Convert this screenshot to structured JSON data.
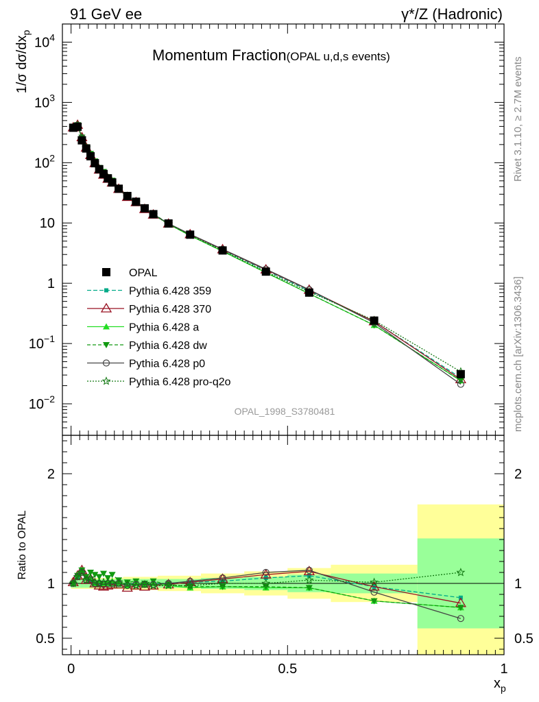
{
  "header": {
    "left": "91 GeV ee",
    "right": "γ*/Z (Hadronic)"
  },
  "side_labels": {
    "rivet": "Rivet 3.1.10, ≥ 2.7M events",
    "mcplots": "mcplots.cern.ch [arXiv:1306.3436]"
  },
  "chart_data": {
    "type": "line",
    "title": "Momentum Fraction",
    "subtitle": "(OPAL u,d,s events)",
    "analysis_id": "OPAL_1998_S3780481",
    "xlabel": "x",
    "xlabel_sub": "p",
    "ylabel_main": "1/σ dσ/dx",
    "ylabel_main_sub": "p",
    "ylabel_ratio": "Ratio to OPAL",
    "xlim": [
      -0.02,
      1.0
    ],
    "x_ticks": [
      "0",
      "0.5",
      "1"
    ],
    "x_tick_values": [
      0,
      0.5,
      1
    ],
    "main": {
      "yscale": "log",
      "ylim": [
        0.003,
        20000
      ],
      "y_ticks": [
        {
          "value": 0.01,
          "base": "10",
          "exp": "−2"
        },
        {
          "value": 0.1,
          "base": "10",
          "exp": "−1"
        },
        {
          "value": 1,
          "base": "1",
          "exp": ""
        },
        {
          "value": 10,
          "base": "10",
          "exp": ""
        },
        {
          "value": 100,
          "base": "10",
          "exp": "2"
        },
        {
          "value": 1000,
          "base": "10",
          "exp": "3"
        },
        {
          "value": 10000,
          "base": "10",
          "exp": "4"
        }
      ]
    },
    "ratio": {
      "ylim": [
        0.35,
        2.35
      ],
      "y_ticks": [
        "0.5",
        "1",
        "2"
      ],
      "y_tick_values": [
        0.5,
        1,
        2
      ],
      "bands": [
        {
          "x0": 0.0,
          "x1": 0.01,
          "inner": 0.04,
          "outer": 0.05
        },
        {
          "x0": 0.01,
          "x1": 0.02,
          "inner": 0.04,
          "outer": 0.05
        },
        {
          "x0": 0.02,
          "x1": 0.03,
          "inner": 0.04,
          "outer": 0.05
        },
        {
          "x0": 0.03,
          "x1": 0.04,
          "inner": 0.04,
          "outer": 0.05
        },
        {
          "x0": 0.04,
          "x1": 0.05,
          "inner": 0.04,
          "outer": 0.05
        },
        {
          "x0": 0.05,
          "x1": 0.06,
          "inner": 0.04,
          "outer": 0.05
        },
        {
          "x0": 0.06,
          "x1": 0.07,
          "inner": 0.04,
          "outer": 0.05
        },
        {
          "x0": 0.07,
          "x1": 0.08,
          "inner": 0.04,
          "outer": 0.05
        },
        {
          "x0": 0.08,
          "x1": 0.09,
          "inner": 0.04,
          "outer": 0.05
        },
        {
          "x0": 0.09,
          "x1": 0.1,
          "inner": 0.04,
          "outer": 0.05
        },
        {
          "x0": 0.1,
          "x1": 0.12,
          "inner": 0.04,
          "outer": 0.05
        },
        {
          "x0": 0.12,
          "x1": 0.14,
          "inner": 0.04,
          "outer": 0.06
        },
        {
          "x0": 0.14,
          "x1": 0.16,
          "inner": 0.04,
          "outer": 0.06
        },
        {
          "x0": 0.16,
          "x1": 0.18,
          "inner": 0.04,
          "outer": 0.06
        },
        {
          "x0": 0.18,
          "x1": 0.2,
          "inner": 0.04,
          "outer": 0.06
        },
        {
          "x0": 0.2,
          "x1": 0.25,
          "inner": 0.04,
          "outer": 0.07
        },
        {
          "x0": 0.25,
          "x1": 0.3,
          "inner": 0.04,
          "outer": 0.07
        },
        {
          "x0": 0.3,
          "x1": 0.4,
          "inner": 0.05,
          "outer": 0.09
        },
        {
          "x0": 0.4,
          "x1": 0.5,
          "inner": 0.06,
          "outer": 0.11
        },
        {
          "x0": 0.5,
          "x1": 0.6,
          "inner": 0.08,
          "outer": 0.14
        },
        {
          "x0": 0.6,
          "x1": 0.8,
          "inner": 0.09,
          "outer": 0.17
        },
        {
          "x0": 0.8,
          "x1": 1.0,
          "inner": 0.41,
          "outer": 0.72
        }
      ]
    },
    "data": {
      "name": "OPAL",
      "x": [
        0.005,
        0.015,
        0.025,
        0.035,
        0.045,
        0.055,
        0.065,
        0.075,
        0.085,
        0.095,
        0.11,
        0.13,
        0.15,
        0.17,
        0.19,
        0.225,
        0.275,
        0.35,
        0.45,
        0.55,
        0.7,
        0.9
      ],
      "y": [
        380,
        395,
        235,
        172,
        128,
        98,
        78,
        65,
        55,
        47,
        37,
        28,
        22.5,
        17.5,
        14,
        9.8,
        6.4,
        3.5,
        1.56,
        0.7,
        0.24,
        0.031
      ]
    },
    "series": [
      {
        "name": "Pythia 6.428 359",
        "color": "#00aa88",
        "marker": "square-small",
        "dash": "6,3",
        "ratio": [
          1.0,
          1.06,
          1.1,
          1.05,
          1.02,
          1.0,
          1.0,
          1.0,
          1.0,
          1.01,
          1.0,
          0.99,
          1.0,
          0.99,
          1.0,
          1.0,
          1.01,
          1.02,
          1.05,
          1.07,
          0.97,
          0.87
        ]
      },
      {
        "name": "Pythia 6.428 370",
        "color": "#991122",
        "marker": "triangle-open",
        "dash": "",
        "ratio": [
          1.01,
          1.07,
          1.12,
          1.03,
          1.04,
          1.0,
          0.98,
          0.97,
          0.98,
          0.99,
          0.99,
          0.96,
          0.98,
          0.97,
          0.98,
          0.99,
          1.01,
          1.04,
          1.08,
          1.11,
          0.97,
          0.82
        ]
      },
      {
        "name": "Pythia 6.428 a",
        "color": "#22dd22",
        "marker": "triangle-filled",
        "dash": "",
        "ratio": [
          1.0,
          1.08,
          1.12,
          1.05,
          1.05,
          1.0,
          1.02,
          1.0,
          1.0,
          1.02,
          1.01,
          0.98,
          1.0,
          0.99,
          1.0,
          0.98,
          0.96,
          0.97,
          0.96,
          0.96,
          0.84,
          0.78
        ]
      },
      {
        "name": "Pythia 6.428 dw",
        "color": "#119911",
        "marker": "triangle-down",
        "dash": "5,3",
        "ratio": [
          1.0,
          1.07,
          1.12,
          1.06,
          1.1,
          1.08,
          1.06,
          1.09,
          1.05,
          1.08,
          1.03,
          1.01,
          1.02,
          1.0,
          1.02,
          0.99,
          0.97,
          0.97,
          0.97,
          0.96,
          0.84,
          0.78
        ]
      },
      {
        "name": "Pythia 6.428 p0",
        "color": "#444444",
        "marker": "circle-open",
        "dash": "",
        "ratio": [
          1.0,
          1.06,
          1.1,
          1.03,
          1.03,
          1.0,
          1.0,
          0.99,
          1.0,
          1.0,
          1.0,
          0.98,
          0.99,
          0.99,
          0.99,
          1.0,
          1.02,
          1.05,
          1.1,
          1.12,
          0.92,
          0.68
        ]
      },
      {
        "name": "Pythia 6.428 pro-q2o",
        "color": "#117711",
        "marker": "star-open",
        "dash": "2,2",
        "ratio": [
          1.0,
          1.06,
          1.1,
          1.03,
          1.05,
          1.01,
          1.0,
          1.01,
          1.01,
          1.0,
          1.0,
          0.99,
          0.98,
          0.99,
          0.98,
          0.98,
          0.98,
          1.0,
          1.0,
          1.03,
          1.01,
          1.1
        ]
      }
    ],
    "band_colors": {
      "inner": "#99ff99",
      "outer": "#ffff99"
    }
  }
}
